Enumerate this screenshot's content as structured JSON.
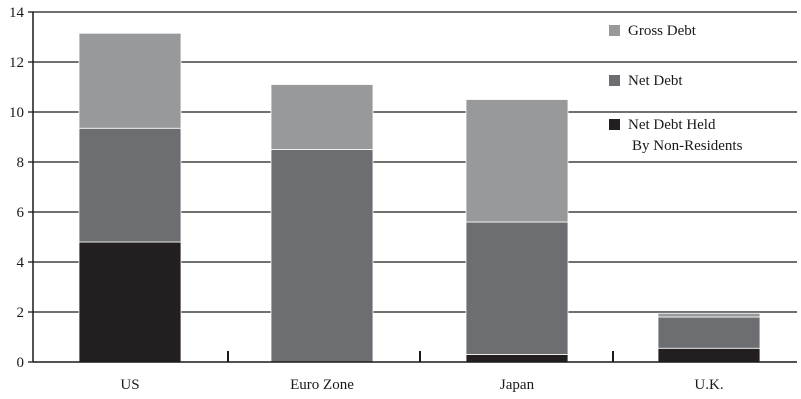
{
  "chart_data": {
    "type": "bar",
    "stacked": true,
    "title": "",
    "xlabel": "",
    "ylabel": "",
    "ylim": [
      0,
      14
    ],
    "yticks": [
      0,
      2,
      4,
      6,
      8,
      10,
      12,
      14
    ],
    "grid": "horizontal",
    "legend_position": "top-right",
    "categories": [
      "US",
      "Euro Zone",
      "Japan",
      "U.K."
    ],
    "series": [
      {
        "name": "Net Debt Held By Non-Residents",
        "legend_lines": [
          "Net Debt Held",
          "By Non-Residents"
        ],
        "color": "#231f20",
        "values": [
          4.8,
          0.0,
          0.3,
          0.55
        ]
      },
      {
        "name": "Net Debt",
        "legend_lines": [
          "Net Debt"
        ],
        "color": "#6d6e71",
        "values": [
          4.55,
          8.5,
          5.3,
          1.25
        ]
      },
      {
        "name": "Gross Debt",
        "legend_lines": [
          "Gross Debt"
        ],
        "color": "#98999b",
        "values": [
          3.8,
          2.6,
          4.9,
          0.15
        ]
      }
    ],
    "legend_order": [
      "Gross Debt",
      "Net Debt",
      "Net Debt Held By Non-Residents"
    ]
  }
}
